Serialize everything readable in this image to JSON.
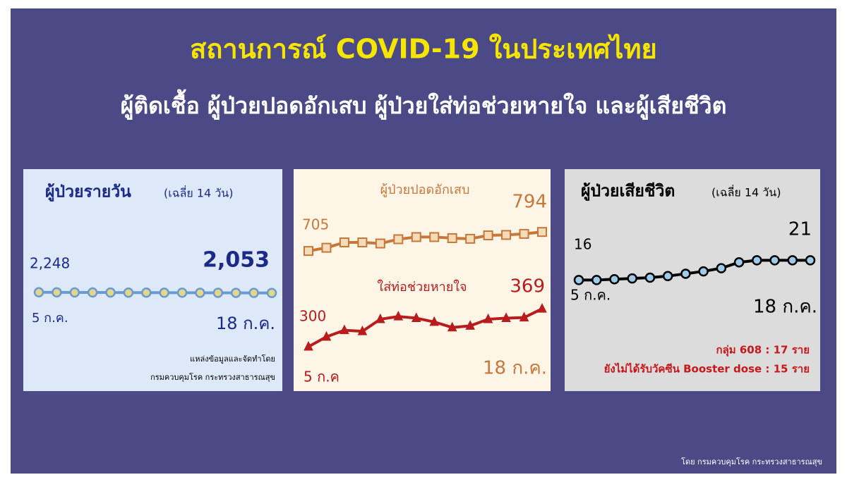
{
  "title": "สถานการณ์ COVID-19 ในประเทศไทย",
  "subtitle": "ผู้ติดเชื้อ ผู้ป่วยปอดอักเสบ ผู้ป่วยใส่ท่อช่วยหายใจ และผู้เสียชีวิต",
  "footer": "โดย กรมควบคุมโรค กระทรวงสาธารณสุข",
  "chart_data": [
    {
      "type": "line",
      "title": "ผู้ป่วยรายวัน",
      "subtitle": "(เฉลี่ย 14 วัน)",
      "categories": [
        "5 ก.ค.",
        null,
        null,
        null,
        null,
        null,
        null,
        null,
        null,
        null,
        null,
        null,
        null,
        "18 ก.ค."
      ],
      "series": [
        {
          "color": "#6a9bd0",
          "marker": "circle",
          "marker_color": "#e3d58c",
          "values": [
            2248,
            2230,
            2210,
            2190,
            2170,
            2150,
            2140,
            2130,
            2120,
            2110,
            2100,
            2085,
            2070,
            2053
          ],
          "value_labels": [
            "2,248",
            null,
            null,
            null,
            null,
            null,
            null,
            null,
            null,
            null,
            null,
            null,
            null,
            "2,053"
          ]
        }
      ],
      "ylim": [
        0,
        60000
      ],
      "notes": [
        "แหล่งข้อมูลและจัดทำโดย",
        "กรมควบคุมโรค กระทรวงสาธารณสุข"
      ]
    },
    {
      "type": "line",
      "categories": [
        "5 ก.ค",
        null,
        null,
        null,
        null,
        null,
        null,
        null,
        null,
        null,
        null,
        null,
        null,
        "18 ก.ค."
      ],
      "series": [
        {
          "name": "ผู้ป่วยปอดอักเสบ",
          "color": "#c8773a",
          "marker": "square",
          "marker_color": "#f3dcb8",
          "values": [
            705,
            720,
            745,
            745,
            740,
            760,
            770,
            770,
            765,
            762,
            778,
            780,
            785,
            794
          ]
        },
        {
          "name": "ใส่ท่อช่วยหายใจ",
          "color": "#b81c1c",
          "marker": "triangle",
          "marker_color": "#b81c1c",
          "axis": "y2",
          "values": [
            300,
            318,
            330,
            328,
            350,
            355,
            352,
            345,
            335,
            338,
            350,
            352,
            353,
            369
          ]
        }
      ],
      "ylim": [
        600,
        900
      ],
      "y2lim": [
        250,
        400
      ]
    },
    {
      "type": "line",
      "title": "ผู้ป่วยเสียชีวิต",
      "subtitle": "(เฉลี่ย 14 วัน)",
      "categories": [
        "5 ก.ค.",
        null,
        null,
        null,
        null,
        null,
        null,
        null,
        null,
        null,
        null,
        null,
        null,
        "18 ก.ค."
      ],
      "series": [
        {
          "color": "#000000",
          "marker": "circle",
          "marker_color": "#9ecbe8",
          "values": [
            16,
            16,
            16.2,
            16.4,
            16.6,
            17,
            17.6,
            18.2,
            19,
            20.5,
            21,
            21,
            21,
            21
          ]
        }
      ],
      "ylim": [
        10,
        30
      ],
      "notes": [
        "กลุ่ม 608 : 17 ราย",
        "ยังไม่ได้รับวัคซีน Booster dose : 15 ราย"
      ]
    }
  ]
}
